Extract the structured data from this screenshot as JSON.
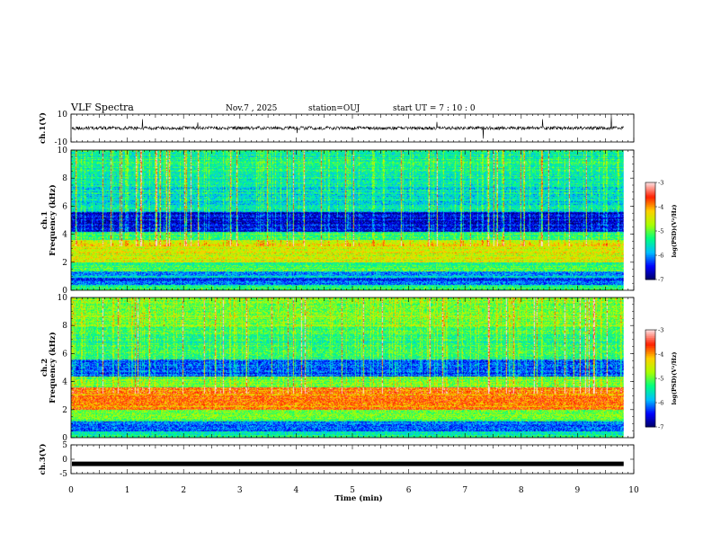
{
  "header": {
    "title": "VLF Spectra",
    "date": "Nov.7 , 2025",
    "station": "station=OUJ",
    "start": "start UT = 7 : 10 : 0"
  },
  "colors": {
    "axes": "#000000",
    "trace": "#000000",
    "colormap": [
      "#000060",
      "#0000ff",
      "#00bfff",
      "#00ff80",
      "#aaff00",
      "#ffd000",
      "#ff2000",
      "#ffd9d9"
    ]
  },
  "chart_data": [
    {
      "id": "ch1-waveform",
      "type": "line",
      "ylabel": "ch.1(V)",
      "ylim": [
        -10,
        10
      ],
      "yticks": [
        "10",
        "-10"
      ],
      "xlim": [
        0,
        10
      ],
      "baseline": 0,
      "noise_amplitude": 1.2
    },
    {
      "id": "ch1-spectrogram",
      "type": "heatmap",
      "ylabel": "ch.1\nFrequency (kHz)",
      "ylim": [
        0,
        10
      ],
      "yticks": [
        "0",
        "2",
        "4",
        "6",
        "8",
        "10"
      ],
      "xlim": [
        0,
        10
      ],
      "colorbar": {
        "label": "log(PSD)(V²/Hz)",
        "range": [
          -7,
          -3
        ],
        "ticks": [
          "-3",
          "-4",
          "-5",
          "-6",
          "-7"
        ]
      },
      "bands_kHz_level": [
        [
          0.0,
          0.4,
          -5.2
        ],
        [
          0.4,
          0.9,
          -6.2
        ],
        [
          0.9,
          1.4,
          -5.8
        ],
        [
          1.4,
          2.0,
          -5.2
        ],
        [
          2.0,
          2.8,
          -4.5
        ],
        [
          2.8,
          3.6,
          -4.4
        ],
        [
          3.6,
          4.2,
          -5.2
        ],
        [
          4.2,
          5.6,
          -6.6
        ],
        [
          5.6,
          6.2,
          -5.6
        ],
        [
          6.2,
          8.0,
          -5.6
        ],
        [
          8.0,
          10.0,
          -5.4
        ]
      ]
    },
    {
      "id": "ch2-spectrogram",
      "type": "heatmap",
      "ylabel": "ch.2\nFrequency (kHz)",
      "ylim": [
        0,
        10
      ],
      "yticks": [
        "0",
        "2",
        "4",
        "6",
        "8",
        "10"
      ],
      "xlim": [
        0,
        10
      ],
      "colorbar": {
        "label": "log(PSD)(V²/Hz)",
        "range": [
          -7,
          -3
        ],
        "ticks": [
          "-3",
          "-4",
          "-5",
          "-6",
          "-7"
        ]
      },
      "bands_kHz_level": [
        [
          0.0,
          0.5,
          -5.4
        ],
        [
          0.5,
          1.2,
          -6.0
        ],
        [
          1.2,
          2.0,
          -5.0
        ],
        [
          2.0,
          3.6,
          -3.9
        ],
        [
          3.6,
          4.4,
          -5.0
        ],
        [
          4.4,
          5.6,
          -6.2
        ],
        [
          5.6,
          8.0,
          -5.2
        ],
        [
          8.0,
          10.0,
          -4.9
        ]
      ]
    },
    {
      "id": "ch3-waveform",
      "type": "line",
      "ylabel": "ch.3(V)",
      "ylim": [
        -5,
        5
      ],
      "yticks": [
        "5",
        "0",
        "-5"
      ],
      "xlim": [
        0,
        10
      ],
      "baseline": -1.6,
      "noise_amplitude": 0.1
    }
  ],
  "xaxis": {
    "label": "Time (min)",
    "ticks": [
      "0",
      "1",
      "2",
      "3",
      "4",
      "5",
      "6",
      "7",
      "8",
      "9",
      "10"
    ],
    "data_end_min": 9.82
  }
}
